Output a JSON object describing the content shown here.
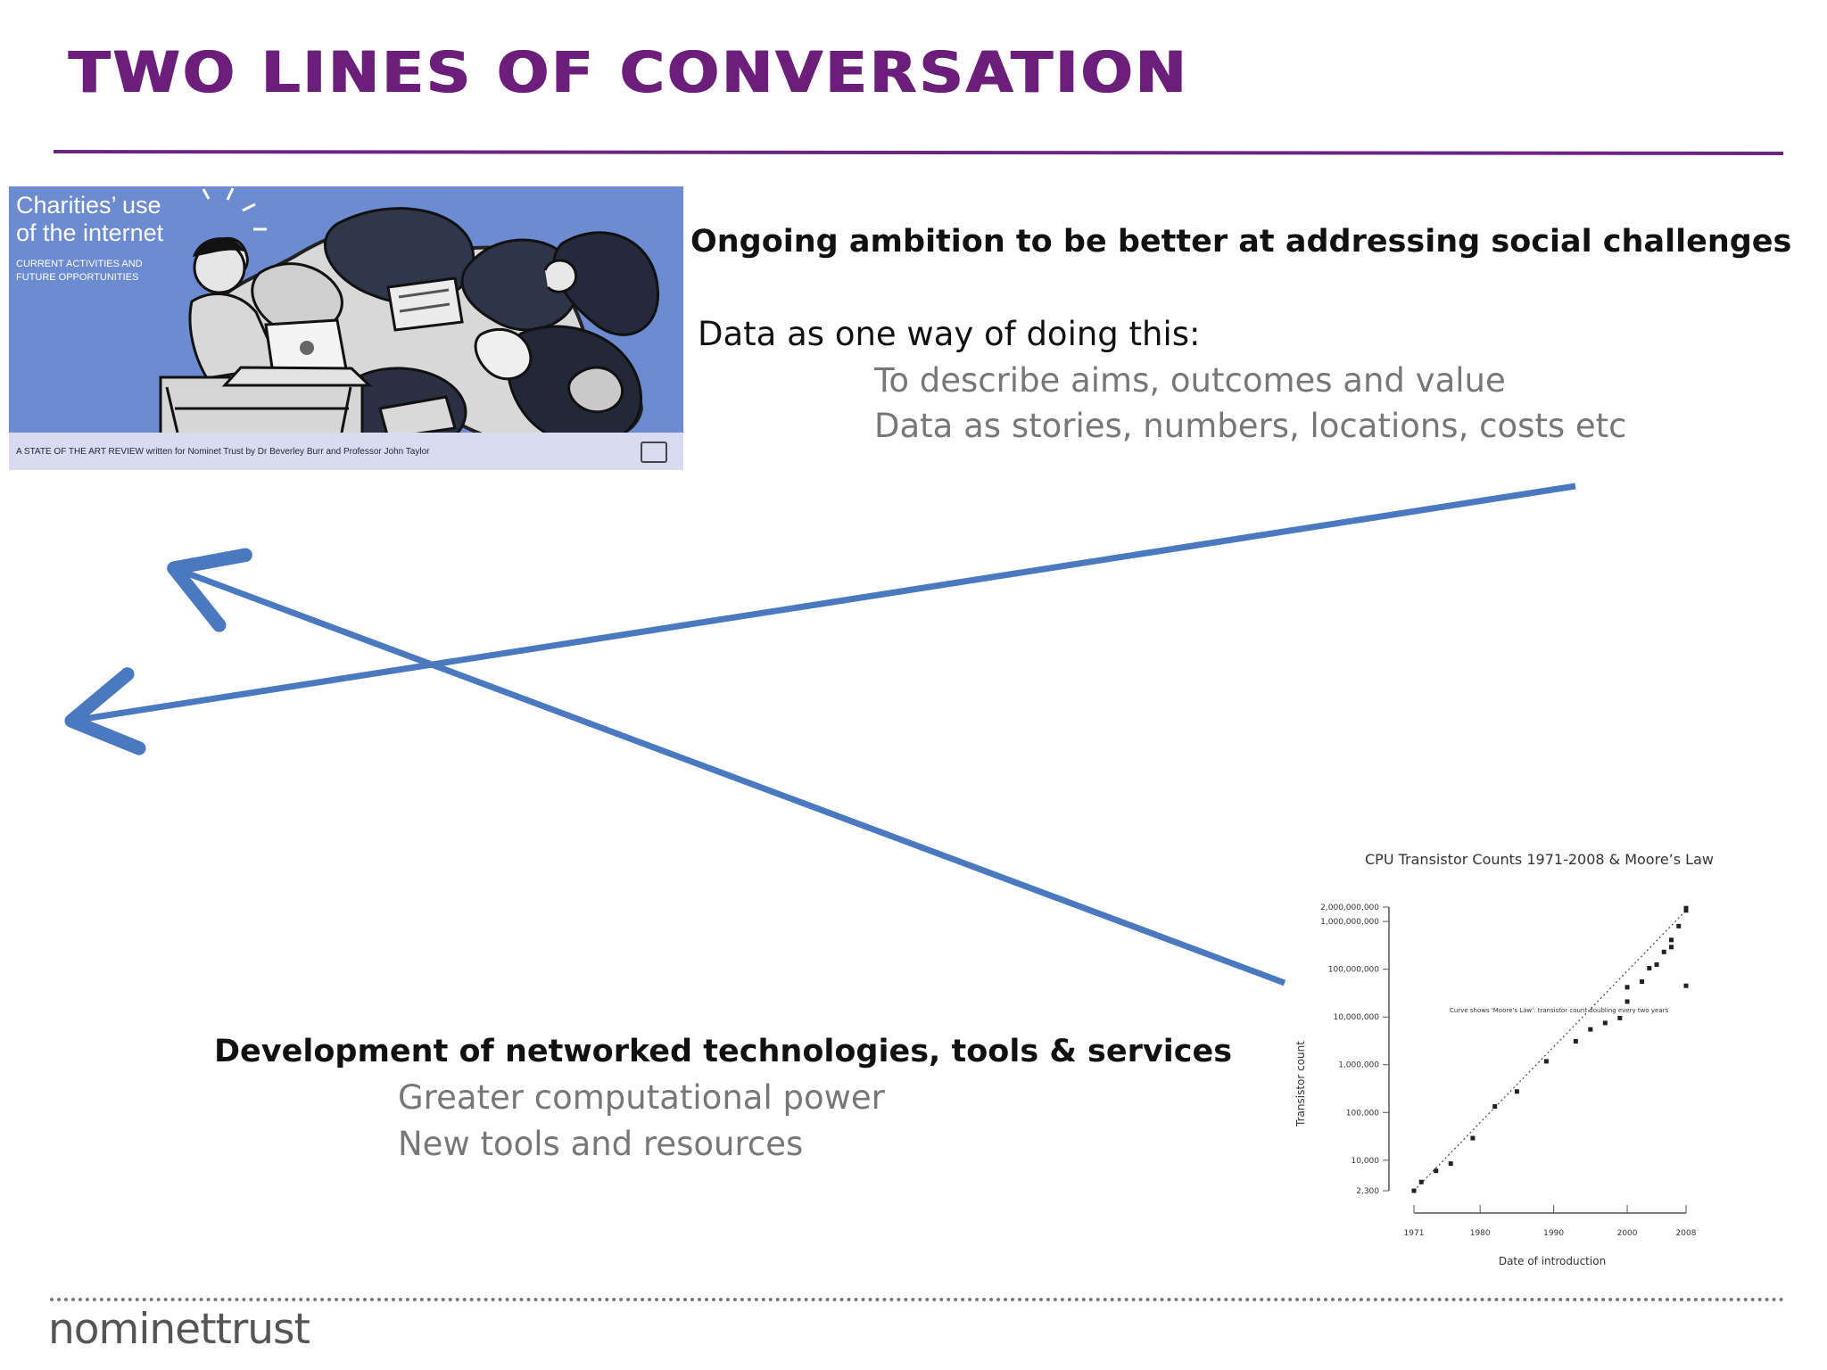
{
  "slide": {
    "title": "TWO LINES OF CONVERSATION"
  },
  "cover": {
    "title": "Charities’ use\nof the internet",
    "subtitle": "CURRENT ACTIVITIES AND\nFUTURE OPPORTUNITIES",
    "footer": "A STATE OF THE ART REVIEW written for Nominet Trust by Dr Beverley Burr and Professor John Taylor"
  },
  "content": {
    "ambition": "Ongoing ambition to be better at addressing social challenges",
    "data_intro": "Data as one way of doing this:",
    "data_points": [
      "To describe aims, outcomes and value",
      "Data as stories, numbers, locations, costs etc"
    ],
    "development": "Development of networked technologies, tools & services",
    "development_points": [
      "Greater computational power",
      "New tools and resources"
    ]
  },
  "chart_data": {
    "type": "scatter",
    "title": "CPU Transistor Counts 1971-2008 & Moore’s Law",
    "xlabel": "Date of introduction",
    "ylabel": "Transistor count",
    "x_ticks": [
      "1971",
      "1980",
      "1990",
      "2000",
      "2008"
    ],
    "y_ticks": [
      "2,000,000,000",
      "1,000,000,000",
      "100,000,000",
      "10,000,000",
      "1,000,000",
      "100,000",
      "10,000",
      "2,300"
    ],
    "x_range": [
      1971,
      2008
    ],
    "y_range": [
      2300,
      2000000000
    ],
    "scale": "log",
    "grid": false,
    "annotation": "Curve shows 'Moore's Law': transistor count doubling every two years",
    "points": [
      {
        "x": 1971,
        "y": 2300
      },
      {
        "x": 1972,
        "y": 3500
      },
      {
        "x": 1974,
        "y": 6000
      },
      {
        "x": 1976,
        "y": 8500
      },
      {
        "x": 1979,
        "y": 29000
      },
      {
        "x": 1982,
        "y": 134000
      },
      {
        "x": 1985,
        "y": 275000
      },
      {
        "x": 1989,
        "y": 1180000
      },
      {
        "x": 1993,
        "y": 3100000
      },
      {
        "x": 1995,
        "y": 5500000
      },
      {
        "x": 1997,
        "y": 7500000
      },
      {
        "x": 1999,
        "y": 9500000
      },
      {
        "x": 2000,
        "y": 21000000
      },
      {
        "x": 2000,
        "y": 42000000
      },
      {
        "x": 2002,
        "y": 55000000
      },
      {
        "x": 2003,
        "y": 105000000
      },
      {
        "x": 2004,
        "y": 125000000
      },
      {
        "x": 2005,
        "y": 230000000
      },
      {
        "x": 2006,
        "y": 291000000
      },
      {
        "x": 2006,
        "y": 410000000
      },
      {
        "x": 2007,
        "y": 800000000
      },
      {
        "x": 2008,
        "y": 1700000000
      },
      {
        "x": 2008,
        "y": 1900000000
      },
      {
        "x": 2008,
        "y": 45000000
      }
    ]
  },
  "footer": {
    "brand": "nominettrust"
  },
  "colors": {
    "title": "#6b1f7b",
    "arrow": "#4a79bf",
    "cover": "#6c8bd0"
  }
}
